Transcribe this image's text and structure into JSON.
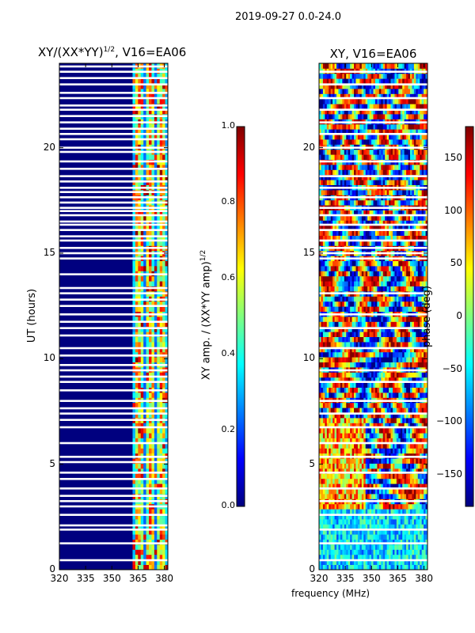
{
  "figure": {
    "suptitle": "2019-09-27 0.0-24.0",
    "xlabel": "frequency (MHz)",
    "left_title": "XY/(XX*YY)",
    "left_title_exp": "1/2",
    "left_title_tail": ", V16=EA06",
    "right_title": "XY, V16=EA06",
    "left_ylabel": "UT (hours)",
    "cb1_label": "XY amp. / (XX*YY amp)",
    "cb1_label_exp": "1/2",
    "cb2_label": "phase (deg)"
  },
  "colors": {
    "background": "#ffffff",
    "jet_low": "#00007f",
    "jet_high": "#7f0000"
  },
  "chart_data": [
    {
      "type": "heatmap",
      "title": "XY/(XX*YY)^1/2, V16=EA06",
      "xlabel": "",
      "ylabel": "UT (hours)",
      "xlim": [
        320,
        382
      ],
      "ylim": [
        0,
        24
      ],
      "xticks": [
        "320",
        "335",
        "350",
        "365",
        "380"
      ],
      "yticks": [
        "0",
        "5",
        "10",
        "15",
        "20"
      ],
      "colorbar": {
        "label": "XY amp. / (XX*YY amp)^1/2",
        "range": [
          0.0,
          1.0
        ],
        "ticks": [
          "0.0",
          "0.2",
          "0.4",
          "0.6",
          "0.8",
          "1.0"
        ]
      },
      "flagged_rows_ut": [
        0.45,
        1.25,
        1.9,
        2.1,
        2.6,
        3.0,
        3.25,
        3.5,
        3.85,
        4.3,
        4.6,
        5.1,
        5.35,
        6.0,
        6.75,
        7.1,
        7.4,
        7.65,
        8.0,
        8.5,
        8.9,
        9.15,
        9.45,
        9.7,
        10.15,
        10.5,
        11.1,
        11.45,
        11.75,
        12.1,
        12.5,
        12.8,
        13.1,
        13.35,
        14.0,
        14.75,
        15.0,
        15.25,
        15.6,
        15.8,
        16.1,
        16.35,
        16.5,
        16.8,
        17.0,
        17.15,
        17.4,
        17.65,
        17.9,
        18.1,
        18.4,
        18.65,
        19.0,
        19.35,
        19.8,
        20.0,
        20.4,
        20.65,
        20.9,
        21.2,
        21.5,
        21.8,
        22.0,
        22.35,
        22.6,
        23.0,
        23.3,
        23.6,
        23.85
      ]
    },
    {
      "type": "heatmap",
      "title": "XY, V16=EA06",
      "xlabel": "frequency (MHz)",
      "ylabel": "",
      "xlim": [
        320,
        382
      ],
      "ylim": [
        0,
        24
      ],
      "xticks": [
        "320",
        "335",
        "350",
        "365",
        "380"
      ],
      "yticks": [
        "0",
        "5",
        "10",
        "15",
        "20"
      ],
      "colorbar": {
        "label": "phase (deg)",
        "range": [
          -180,
          180
        ],
        "ticks": [
          "−150",
          "−100",
          "−50",
          "0",
          "50",
          "100",
          "150"
        ],
        "tick_values": [
          -150,
          -100,
          -50,
          0,
          50,
          100,
          150
        ]
      },
      "flagged_rows_ut": [
        0.45,
        1.25,
        1.9,
        2.6,
        3.25,
        3.85,
        4.6,
        5.35,
        6.0,
        6.75,
        7.4,
        8.0,
        8.9,
        9.45,
        10.5,
        11.45,
        12.1,
        13.1,
        14.75,
        15.0,
        15.25,
        15.6,
        16.1,
        16.35,
        16.8,
        17.15,
        17.65,
        18.1,
        18.65,
        19.35,
        20.0,
        20.65,
        21.2,
        21.8,
        22.35,
        23.0,
        23.6
      ]
    }
  ]
}
